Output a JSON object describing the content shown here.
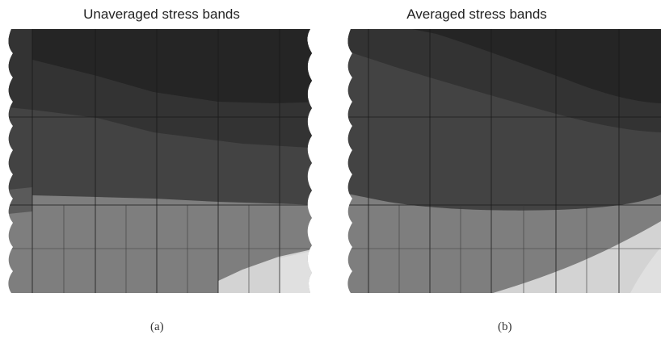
{
  "panels": [
    {
      "title": "Unaveraged stress bands",
      "caption": "(a)"
    },
    {
      "title": "Averaged stress bands",
      "caption": "(b)"
    }
  ],
  "colors": {
    "band_darkest": "#252525",
    "band_dark": "#333333",
    "band_mid_dark": "#424242",
    "band_mid": "#7c7c7c",
    "band_light": "#d2d2d2",
    "mesh_line": "#1a1a1a"
  }
}
